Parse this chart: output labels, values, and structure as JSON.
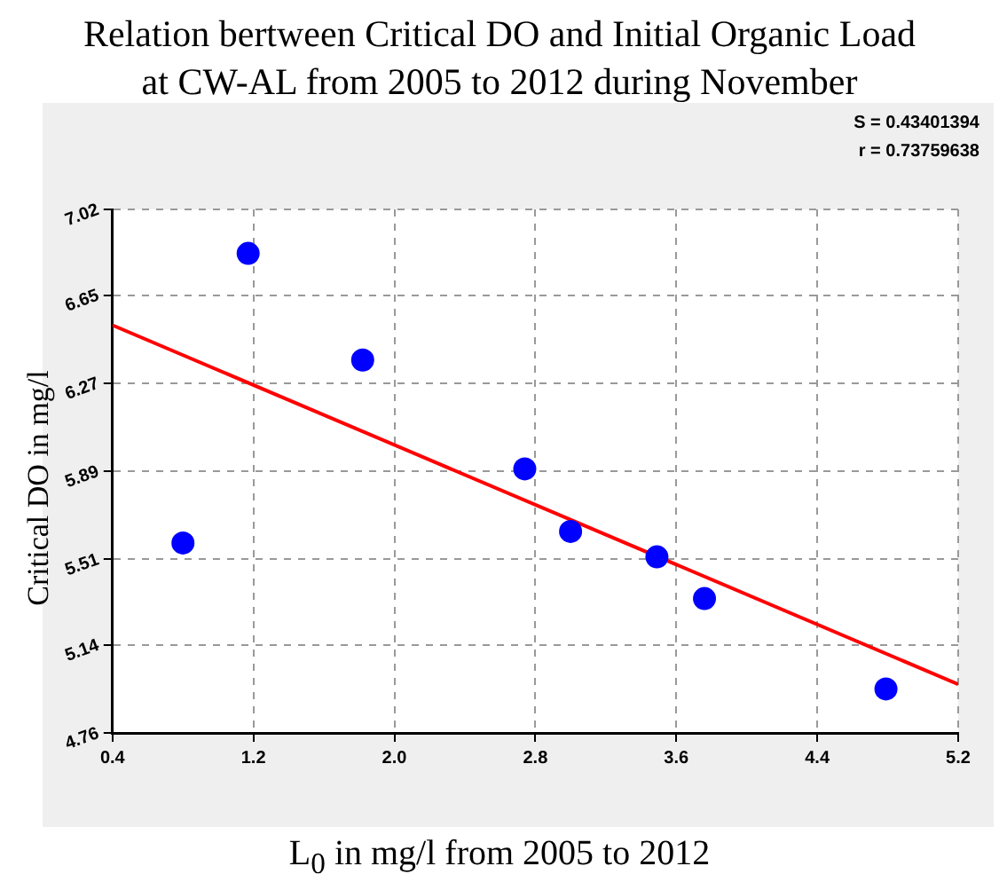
{
  "chart_data": {
    "type": "scatter",
    "title": "Relation bertween Critical DO and Initial Organic Load\nat CW-AL from 2005 to 2012 during November",
    "xlabel": "L$_{0}$ in mg/l from 2005 to 2012",
    "ylabel": "Critical DO in mg/l",
    "annotations": [
      "S = 0.43401394",
      "r = 0.73759638"
    ],
    "series": [
      {
        "marker": "circle",
        "color": "#0000ff",
        "x": [
          0.8,
          1.17,
          1.82,
          2.74,
          3.0,
          3.49,
          3.76,
          4.79
        ],
        "values": [
          5.58,
          6.83,
          6.37,
          5.9,
          5.63,
          5.52,
          5.34,
          4.95
        ]
      },
      {
        "type": "line",
        "color": "#ff0000",
        "x": [
          0.4,
          5.2
        ],
        "values": [
          6.52,
          4.97
        ]
      }
    ],
    "xlim": [
      0.4,
      5.2
    ],
    "xticks": [
      0.4,
      1.2,
      {
        "value": 2,
        "label": "2.0"
      },
      2.8,
      3.6,
      4.4,
      5.2
    ],
    "ylim": [
      4.76,
      7.02
    ],
    "yticks": [
      4.76,
      5.14,
      5.51,
      5.89,
      6.27,
      6.65,
      7.02
    ],
    "grid": true,
    "legend": false
  }
}
